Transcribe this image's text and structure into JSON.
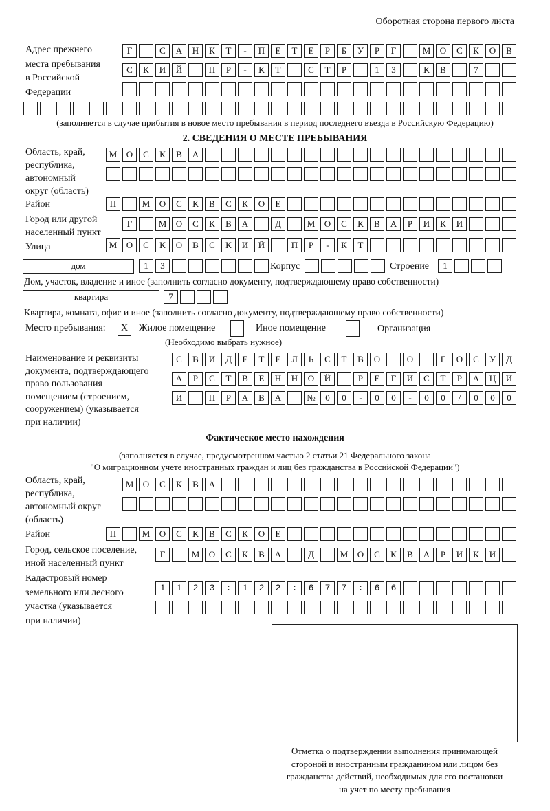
{
  "header": "Оборотная сторона первого листа",
  "prev_address": {
    "label": [
      "Адрес прежнего",
      "места пребывания",
      "в Российской",
      "Федерации"
    ],
    "rows": [
      "Г САНКТ-ПЕТЕРБУРГ МОСКОВ",
      "СКИЙ ПР-КТ СТР 13 КВ 7",
      "",
      ""
    ],
    "note": "(заполняется в случае прибытия в новое место пребывания в период последнего въезда в Российскую Федерацию)"
  },
  "section2": {
    "title": "2. СВЕДЕНИЯ О МЕСТЕ ПРЕБЫВАНИЯ",
    "region_label": [
      "Область, край,",
      "республика,",
      "автономный",
      "округ (область)"
    ],
    "region_rows": [
      "МОСКВА",
      ""
    ],
    "district_label": "Район",
    "district": "П МОСКВСКОЕ",
    "city_label": [
      "Город или другой",
      "населенный пункт"
    ],
    "city": "Г МОСКВА Д МОСКВАРИКИ",
    "street_label": "Улица",
    "street": "МОСКОВСКИЙ ПР-КТ",
    "house_type": "дом",
    "house": "13",
    "korpus_label": "Корпус",
    "korpus": "",
    "stroenie_label": "Строение",
    "stroenie": "1",
    "house_note": "Дом, участок, владение и иное (заполнить согласно документу, подтверждающему право собственности)",
    "apt_type": "квартира",
    "apt": "7",
    "apt_note": "Квартира, комната, офис и иное (заполнить согласно документу, подтверждающему право собственности)",
    "stay_label": "Место пребывания:",
    "stay_options": [
      {
        "label": "Жилое помещение",
        "mark": "X"
      },
      {
        "label": "Иное помещение",
        "mark": ""
      },
      {
        "label": "Организация",
        "mark": ""
      }
    ],
    "stay_note": "(Необходимо выбрать нужное)",
    "doc_label": [
      "Наименование и реквизиты",
      "документа, подтверждающего",
      "право пользования",
      "помещением (строением,",
      "сооружением) (указывается",
      "при наличии)"
    ],
    "doc_rows": [
      "СВИДЕТЕЛЬСТВО О ГОСУД",
      "АРСТВЕННОЙ РЕГИСТРАЦИ",
      "И ПРАВА №00-00-00/000"
    ]
  },
  "actual": {
    "title": "Фактическое место нахождения",
    "note": [
      "(заполняется в случае, предусмотренном частью 2 статьи 21 Федерального закона",
      "\"О миграционном учете иностранных граждан и лиц без гражданства в Российской Федерации\")"
    ],
    "region_label": [
      "Область, край,",
      "республика,",
      "автономный округ",
      "(область)"
    ],
    "region_rows": [
      "МОСКВА",
      ""
    ],
    "district_label": "Район",
    "district": "П МОСКВСКОЕ",
    "city_label": [
      "Город, сельское поселение,",
      "иной населенный пункт"
    ],
    "city": "Г МОСКВА Д МОСКВАРИКИ",
    "cadastre_label": [
      "Кадастровый номер",
      "земельного или лесного",
      "участка (указывается",
      "при наличии)"
    ],
    "cadastre_rows": [
      "1123:122:677:66",
      ""
    ]
  },
  "stamp_caption": [
    "Отметка о подтверждении выполнения принимающей",
    "стороной и иностранным гражданином или лицом без",
    "гражданства действий, необходимых для его постановки",
    "на учет по месту пребывания"
  ]
}
